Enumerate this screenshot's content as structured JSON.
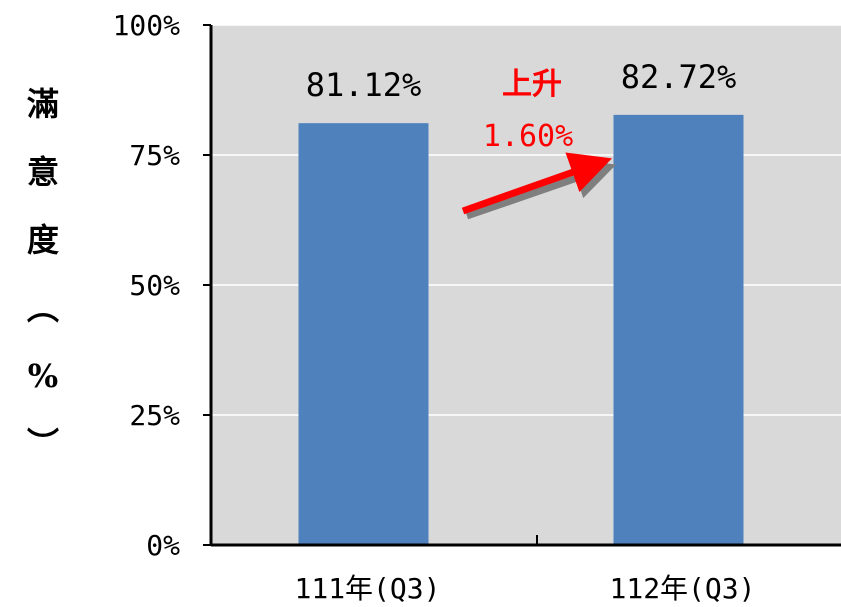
{
  "chart_data": {
    "type": "bar",
    "categories": [
      "111年(Q3)",
      "112年(Q3)"
    ],
    "values": [
      81.12,
      82.72
    ],
    "value_labels": [
      "81.12%",
      "82.72%"
    ],
    "ylabel_chars": [
      "滿",
      "意",
      "度",
      "︵",
      "%",
      "︶"
    ],
    "yticks": [
      0,
      25,
      50,
      75,
      100
    ],
    "ytick_labels": [
      "0%",
      "25%",
      "50%",
      "75%",
      "100%"
    ],
    "ylim": [
      0,
      100
    ],
    "grid": true,
    "annotation": {
      "line1": "上升",
      "line2": "1.60%"
    },
    "colors": {
      "bar": "#4f81bd",
      "plot_bg": "#d9d9d9",
      "grid": "#ffffff",
      "annotation": "#ff0000"
    }
  }
}
